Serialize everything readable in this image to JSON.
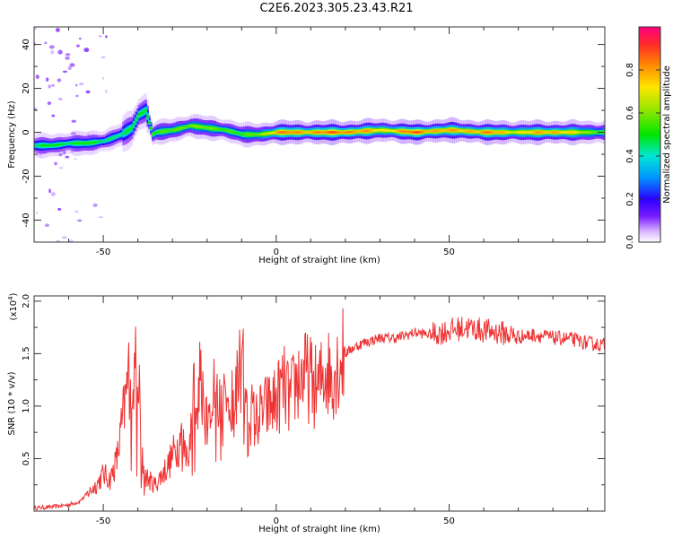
{
  "title": "C2E6.2023.305.23.43.R21",
  "chart_data": [
    {
      "type": "heatmap",
      "xlabel": "Height of straight line (km)",
      "ylabel": "Frequency (Hz)",
      "xlim": [
        -70,
        95
      ],
      "ylim": [
        -50,
        48
      ],
      "x_ticks": [
        -50,
        0,
        50
      ],
      "x_tick_labels": [
        "-50",
        "0",
        "50"
      ],
      "y_ticks": [
        -40,
        -20,
        0,
        20,
        40
      ],
      "y_tick_labels": [
        "-40",
        "-20",
        "0",
        "20",
        "40"
      ],
      "colorbar": {
        "label": "Normalized spectral amplitude",
        "range": [
          0,
          1
        ],
        "ticks": [
          0.0,
          0.2,
          0.4,
          0.6,
          0.8
        ],
        "tick_labels": [
          "0.0",
          "0.2",
          "0.4",
          "0.6",
          "0.8"
        ]
      },
      "ridge": {
        "x": [
          -70,
          -65,
          -60,
          -55,
          -50,
          -45,
          -42,
          -40,
          -38,
          -36,
          -35,
          -30,
          -25,
          -20,
          -15,
          -10,
          -5,
          0,
          10,
          20,
          30,
          40,
          50,
          60,
          70,
          80,
          90,
          95
        ],
        "y": [
          -6,
          -6,
          -5,
          -5,
          -4,
          -1,
          2,
          8,
          10,
          -1,
          0,
          1,
          3,
          2,
          1,
          -1,
          -1,
          0,
          0,
          0,
          1,
          0,
          1,
          0,
          0,
          0,
          0,
          0
        ],
        "amplitude": [
          0.45,
          0.55,
          0.5,
          0.55,
          0.5,
          0.45,
          0.5,
          0.55,
          0.5,
          0.6,
          0.55,
          0.6,
          0.65,
          0.6,
          0.6,
          0.55,
          0.65,
          0.85,
          0.85,
          0.9,
          0.75,
          0.9,
          0.8,
          0.85,
          0.75,
          0.85,
          0.65,
          0.6
        ]
      }
    },
    {
      "type": "line",
      "xlabel": "Height of straight line (km)",
      "ylabel": "SNR (10 * v/v)",
      "y_multiplier": "(x10",
      "y_multiplier_exp": "4",
      "xlim": [
        -70,
        95
      ],
      "ylim": [
        0,
        2.05
      ],
      "x_ticks": [
        -50,
        0,
        50
      ],
      "x_tick_labels": [
        "-50",
        "0",
        "50"
      ],
      "y_ticks": [
        0.5,
        1.0,
        1.5,
        2.0
      ],
      "y_tick_labels": [
        "0.5",
        "1.0",
        "1.5",
        "2.0"
      ],
      "color": "#ee3333",
      "series": [
        {
          "x": [
            -70,
            -65,
            -60,
            -57,
            -55,
            -52,
            -50,
            -48,
            -46,
            -44,
            -42,
            -41,
            -40,
            -39,
            -38,
            -37,
            -35,
            -33,
            -31,
            -29,
            -27,
            -25,
            -24,
            -23,
            -22,
            -20,
            -18,
            -16,
            -14,
            -12,
            -10,
            -8,
            -6,
            -4,
            -2,
            0,
            2,
            4,
            6,
            8,
            10,
            12,
            14,
            16,
            18,
            20,
            22,
            25,
            30,
            35,
            40,
            45,
            50,
            55,
            60,
            65,
            70,
            75,
            80,
            85,
            90,
            95
          ],
          "y": [
            0.03,
            0.04,
            0.06,
            0.09,
            0.15,
            0.25,
            0.35,
            0.3,
            0.5,
            0.95,
            1.45,
            1.3,
            1.55,
            0.6,
            0.35,
            0.3,
            0.25,
            0.35,
            0.45,
            0.6,
            0.7,
            0.55,
            1.2,
            0.8,
            1.45,
            0.9,
            1.1,
            0.9,
            1.25,
            1.0,
            1.45,
            1.0,
            0.85,
            0.95,
            1.0,
            1.05,
            1.2,
            1.05,
            1.25,
            1.3,
            1.25,
            1.15,
            1.35,
            1.3,
            1.4,
            1.5,
            1.55,
            1.6,
            1.65,
            1.65,
            1.7,
            1.68,
            1.72,
            1.75,
            1.72,
            1.7,
            1.66,
            1.68,
            1.65,
            1.64,
            1.6,
            1.58
          ]
        }
      ]
    }
  ]
}
